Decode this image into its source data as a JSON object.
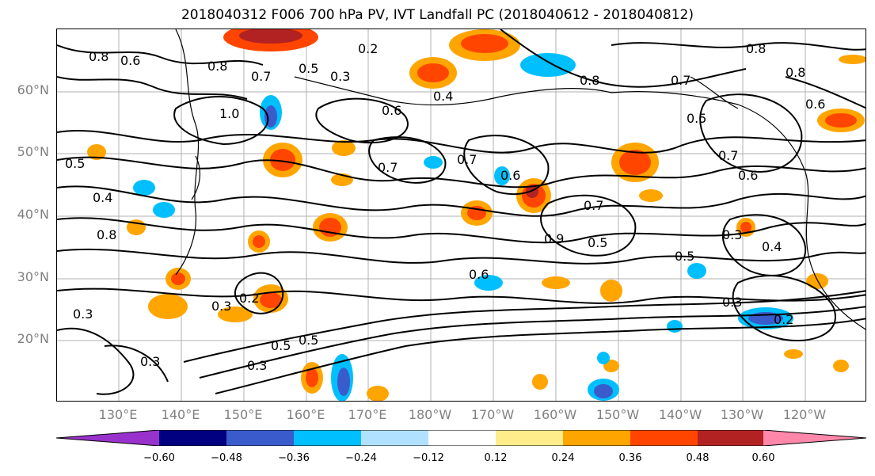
{
  "title": "2018040312 F006 700 hPa PV, IVT Landfall PC (2018040612 - 2018040812)",
  "lat_labels": [
    "60°N",
    "50°N",
    "40°N",
    "30°N",
    "20°N"
  ],
  "lon_labels": [
    "130°E",
    "140°E",
    "150°E",
    "160°E",
    "170°E",
    "180°W",
    "170°W",
    "160°W",
    "150°W",
    "140°W",
    "130°W",
    "120°W"
  ],
  "contour_labels": [
    "0.8",
    "0.6",
    "0.8",
    "0.7",
    "0.5",
    "0.3",
    "0.2",
    "0.8",
    "0.8",
    "0.6",
    "0.7",
    "0.4",
    "0.6",
    "1.0",
    "0.8",
    "0.5",
    "0.6",
    "0.7",
    "0.7",
    "0.7",
    "0.6",
    "0.7",
    "0.5",
    "0.6",
    "0.4",
    "0.9",
    "0.5",
    "0.3",
    "0.4",
    "0.8",
    "0.5",
    "0.5",
    "0.3",
    "0.2",
    "0.3",
    "0.5",
    "0.3",
    "0.3",
    "0.2",
    "0.3"
  ],
  "colorbar": {
    "colors": [
      "#9932cc",
      "#000080",
      "#3a5bcc",
      "#00bfff",
      "#b0e2ff",
      "#ffffff",
      "#ffec8b",
      "#ffa500",
      "#ff4500",
      "#b22222",
      "#ff88aa"
    ],
    "ticks": [
      "−0.60",
      "−0.48",
      "−0.36",
      "−0.24",
      "−0.12",
      "0.12",
      "0.24",
      "0.36",
      "0.48",
      "0.60"
    ]
  }
}
